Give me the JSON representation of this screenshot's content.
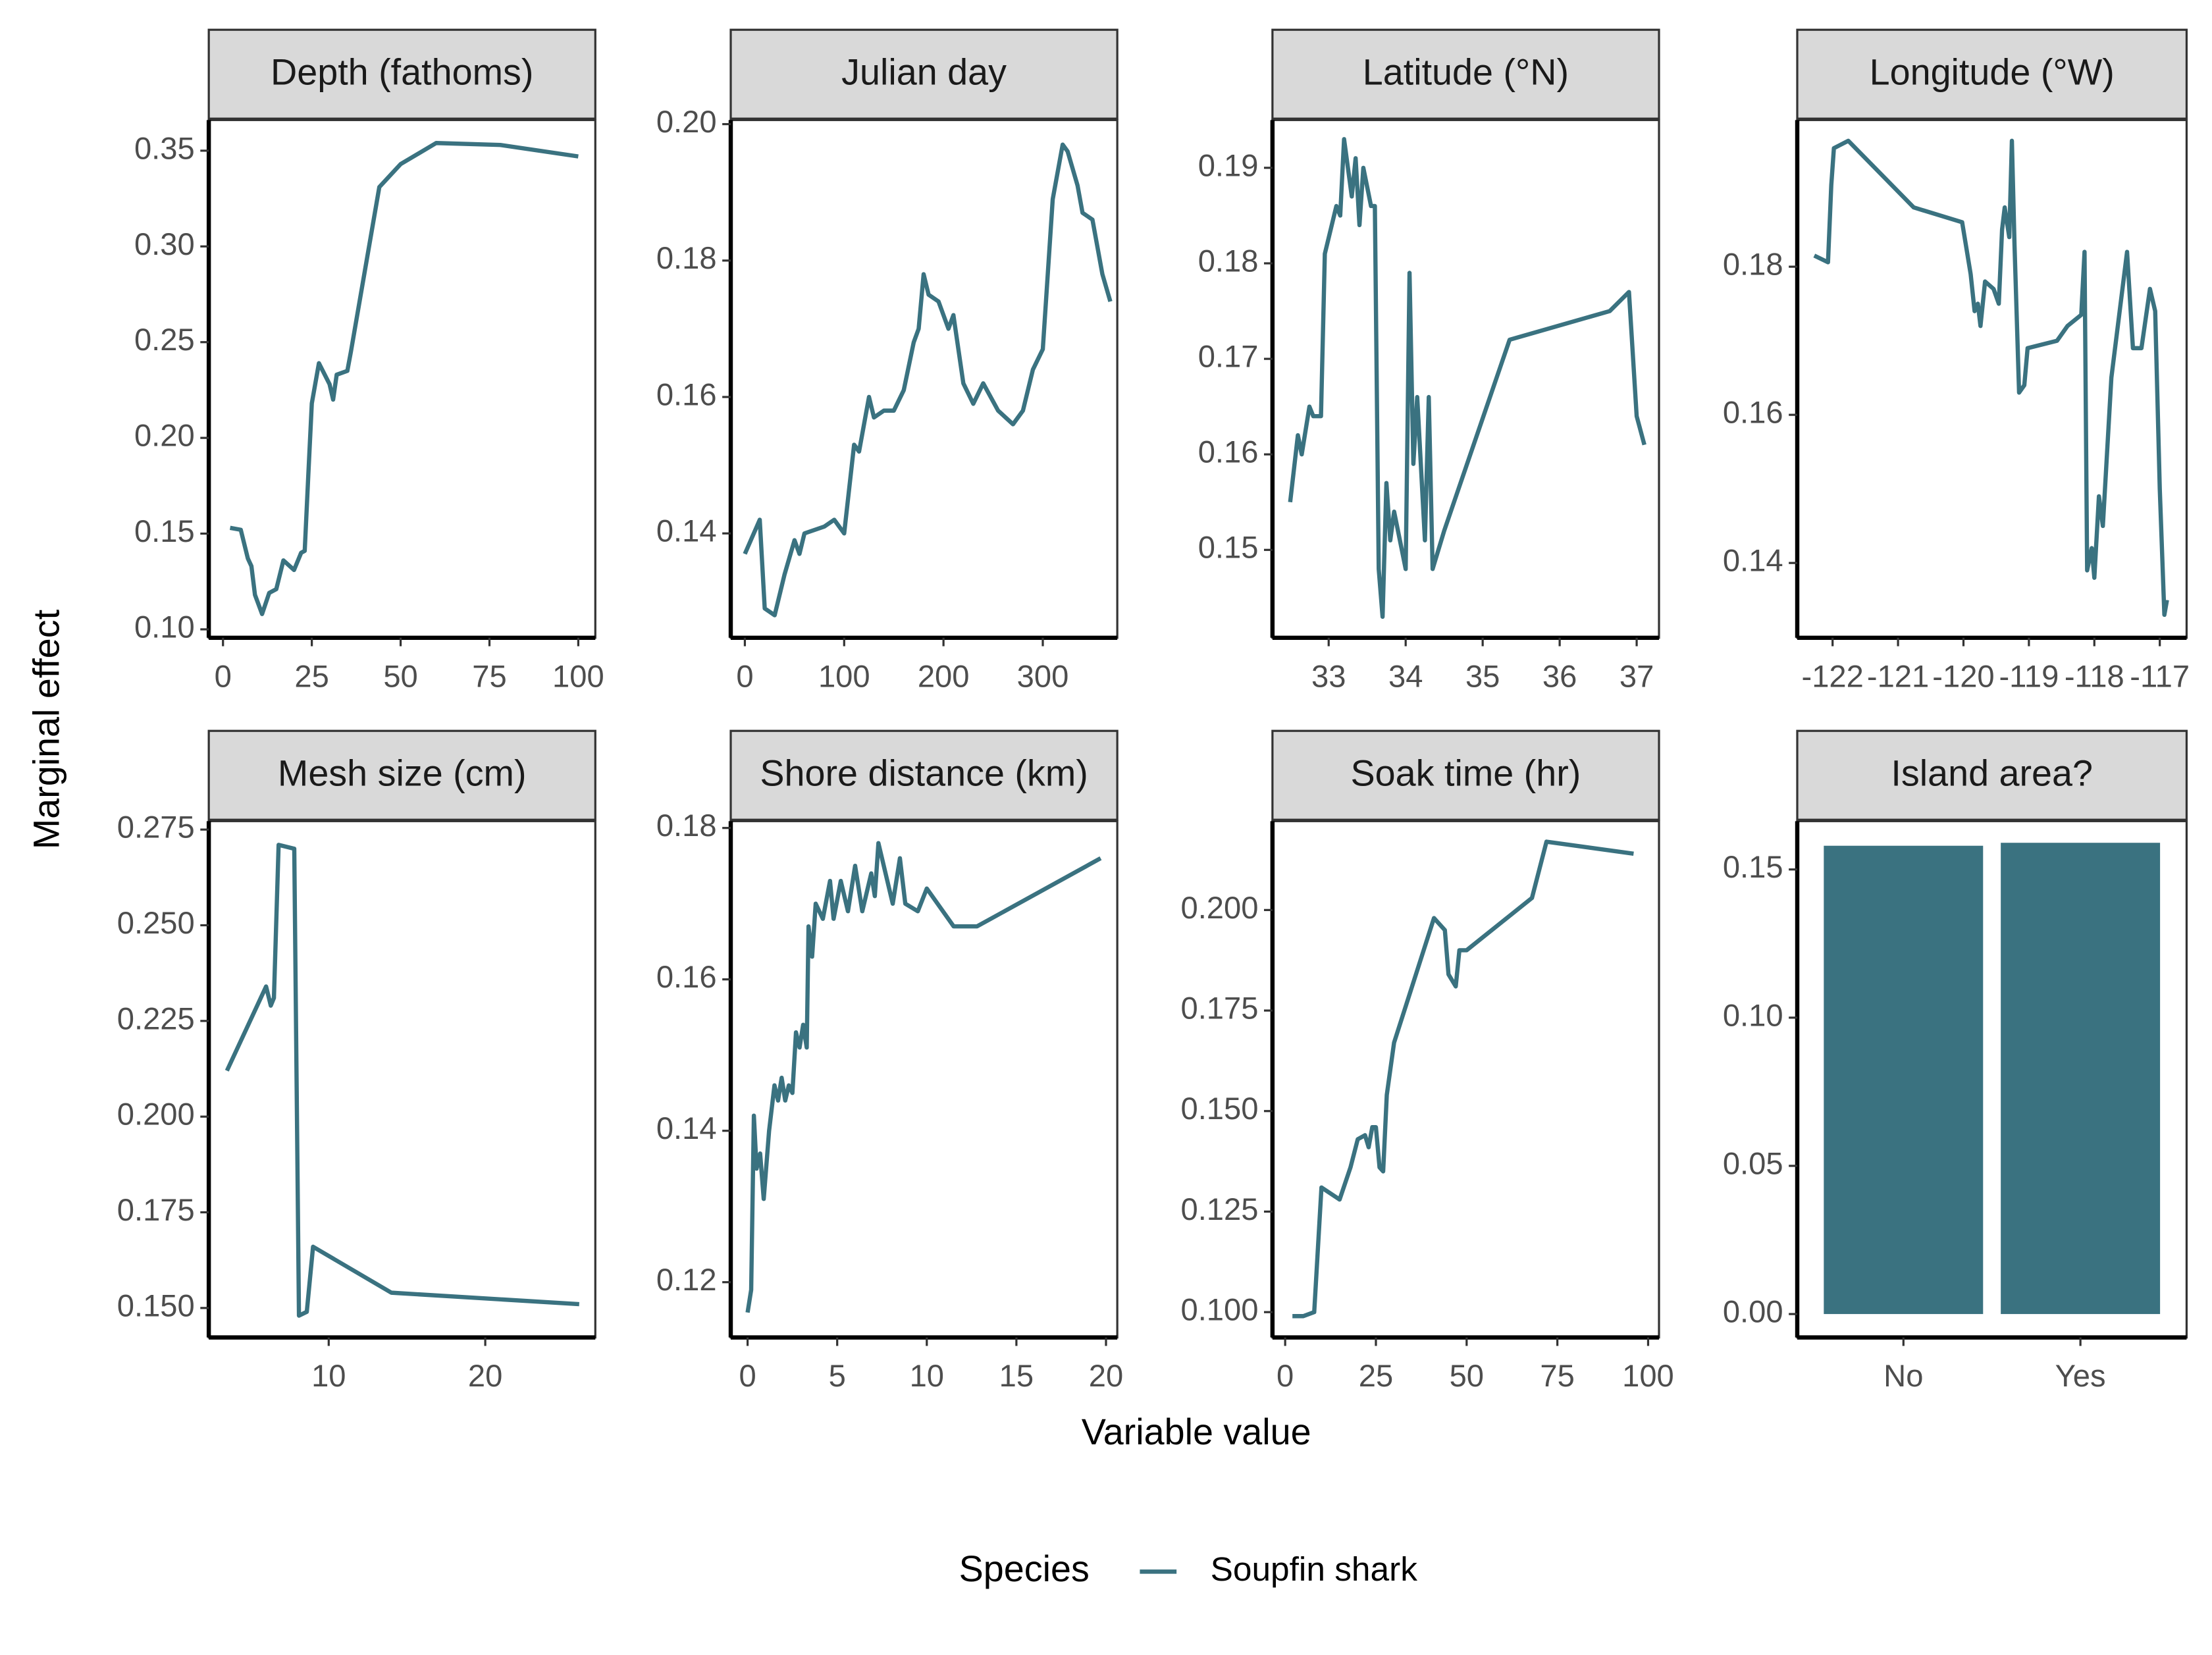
{
  "y_label": "Marginal effect",
  "x_label": "Variable value",
  "legend": {
    "title": "Species",
    "entries": [
      {
        "name": "Soupfin shark",
        "color": "#3a7280"
      }
    ]
  },
  "chart_data": [
    {
      "type": "line",
      "title": "Depth (fathoms)",
      "color": "#3a7280",
      "x": [
        2,
        5,
        7,
        8,
        9,
        10,
        11,
        13,
        15,
        17,
        20,
        22,
        23,
        24,
        25,
        27,
        30,
        31,
        32,
        35,
        36,
        44,
        50,
        60,
        78,
        100
      ],
      "values": [
        0.153,
        0.152,
        0.137,
        0.133,
        0.118,
        0.113,
        0.108,
        0.119,
        0.121,
        0.136,
        0.131,
        0.14,
        0.141,
        0.18,
        0.218,
        0.239,
        0.228,
        0.22,
        0.233,
        0.235,
        0.245,
        0.331,
        0.343,
        0.354,
        0.353,
        0.347
      ],
      "xlim": [
        -4,
        104.8
      ],
      "ylim": [
        0.0956,
        0.366
      ],
      "xticks": [
        0,
        25,
        50,
        75,
        100
      ],
      "yticks": [
        {
          "value": 0.1,
          "label": "0.10"
        },
        0.15,
        {
          "value": 0.2,
          "label": "0.20"
        },
        0.25,
        {
          "value": 0.3,
          "label": "0.30"
        },
        0.35
      ]
    },
    {
      "type": "line",
      "title": "Julian day",
      "color": "#3a7280",
      "x": [
        0,
        15,
        20,
        30,
        40,
        50,
        55,
        60,
        80,
        90,
        100,
        110,
        115,
        125,
        130,
        140,
        150,
        160,
        170,
        175,
        180,
        185,
        195,
        205,
        210,
        220,
        230,
        240,
        255,
        270,
        280,
        290,
        300,
        310,
        320,
        325,
        335,
        340,
        350,
        360,
        368
      ],
      "values": [
        0.137,
        0.142,
        0.129,
        0.128,
        0.134,
        0.139,
        0.137,
        0.14,
        0.141,
        0.142,
        0.14,
        0.153,
        0.152,
        0.16,
        0.157,
        0.158,
        0.158,
        0.161,
        0.168,
        0.17,
        0.178,
        0.175,
        0.174,
        0.17,
        0.172,
        0.162,
        0.159,
        0.162,
        0.158,
        0.156,
        0.158,
        0.164,
        0.167,
        0.189,
        0.197,
        0.196,
        0.191,
        0.187,
        0.186,
        0.178,
        0.174
      ],
      "xlim": [
        -14.2,
        375
      ],
      "ylim": [
        0.1247,
        0.2006
      ],
      "xticks": [
        0,
        100,
        200,
        300
      ],
      "yticks": [
        0.14,
        0.16,
        0.18,
        {
          "value": 0.2,
          "label": "0.20"
        }
      ]
    },
    {
      "type": "line",
      "title": "Latitude (°N)",
      "color": "#3a7280",
      "x": [
        32.5,
        32.6,
        32.65,
        32.75,
        32.8,
        32.9,
        32.95,
        33.1,
        33.15,
        33.2,
        33.3,
        33.35,
        33.4,
        33.45,
        33.55,
        33.6,
        33.65,
        33.7,
        33.75,
        33.8,
        33.85,
        34.0,
        34.05,
        34.1,
        34.15,
        34.25,
        34.3,
        34.35,
        34.5,
        35.35,
        36.65,
        36.9,
        37.0,
        37.1
      ],
      "values": [
        0.155,
        0.162,
        0.16,
        0.165,
        0.164,
        0.164,
        0.181,
        0.186,
        0.185,
        0.193,
        0.187,
        0.191,
        0.184,
        0.19,
        0.186,
        0.186,
        0.148,
        0.143,
        0.157,
        0.151,
        0.154,
        0.148,
        0.179,
        0.159,
        0.166,
        0.151,
        0.166,
        0.148,
        0.152,
        0.172,
        0.175,
        0.177,
        0.164,
        0.161
      ],
      "xlim": [
        32.27,
        37.29
      ],
      "ylim": [
        0.1408,
        0.195
      ],
      "xticks": [
        33,
        34,
        35,
        36,
        37
      ],
      "yticks": [
        0.15,
        0.16,
        0.17,
        0.18,
        0.19
      ]
    },
    {
      "type": "line",
      "title": "Longitude (°W)",
      "color": "#3a7280",
      "x": [
        -122.28,
        -122.07,
        -122.02,
        -121.98,
        -121.76,
        -120.76,
        -120.02,
        -119.89,
        -119.83,
        -119.78,
        -119.74,
        -119.67,
        -119.54,
        -119.46,
        -119.41,
        -119.37,
        -119.3,
        -119.26,
        -119.22,
        -119.15,
        -119.07,
        -119.02,
        -118.57,
        -118.41,
        -118.2,
        -118.15,
        -118.11,
        -118.04,
        -118.0,
        -117.93,
        -117.87,
        -117.74,
        -117.5,
        -117.41,
        -117.28,
        -117.15,
        -117.07,
        -117.0,
        -116.93,
        -116.89
      ],
      "values": [
        0.1815,
        0.1806,
        0.191,
        0.196,
        0.197,
        0.188,
        0.186,
        0.179,
        0.174,
        0.175,
        0.172,
        0.178,
        0.177,
        0.175,
        0.185,
        0.188,
        0.184,
        0.197,
        0.183,
        0.163,
        0.164,
        0.169,
        0.17,
        0.172,
        0.1735,
        0.182,
        0.139,
        0.142,
        0.138,
        0.149,
        0.145,
        0.165,
        0.182,
        0.169,
        0.169,
        0.177,
        0.174,
        0.15,
        0.133,
        0.135
      ],
      "xlim": [
        -122.54,
        -116.59
      ],
      "ylim": [
        0.1299,
        0.1998
      ],
      "xticks": [
        -122,
        -121,
        -120,
        -119,
        -118,
        -117
      ],
      "yticks": [
        0.14,
        0.16,
        0.18
      ]
    },
    {
      "type": "line",
      "title": "Mesh size (cm)",
      "color": "#3a7280",
      "x": [
        3.5,
        6,
        6.3,
        6.5,
        6.8,
        7.8,
        8.1,
        8.6,
        9,
        14,
        26
      ],
      "values": [
        0.212,
        0.234,
        0.229,
        0.231,
        0.271,
        0.27,
        0.148,
        0.149,
        0.166,
        0.154,
        0.151
      ],
      "xlim": [
        2.34,
        27.03
      ],
      "ylim": [
        0.1423,
        0.2772
      ],
      "xticks": [
        10,
        20
      ],
      "yticks": [
        {
          "value": 0.15,
          "label": "0.150"
        },
        0.175,
        {
          "value": 0.2,
          "label": "0.200"
        },
        0.225,
        {
          "value": 0.25,
          "label": "0.250"
        },
        0.275
      ]
    },
    {
      "type": "line",
      "title": "Shore distance (km)",
      "color": "#3a7280",
      "x": [
        0,
        0.2,
        0.35,
        0.5,
        0.7,
        0.9,
        1.2,
        1.5,
        1.7,
        1.9,
        2.1,
        2.3,
        2.5,
        2.7,
        2.9,
        3.1,
        3.3,
        3.4,
        3.6,
        3.8,
        4.2,
        4.6,
        4.8,
        5.2,
        5.6,
        6.0,
        6.4,
        6.9,
        7.1,
        7.3,
        7.7,
        8.1,
        8.5,
        8.8,
        9.5,
        10,
        11.5,
        12.8,
        19.7
      ],
      "values": [
        0.116,
        0.119,
        0.142,
        0.135,
        0.137,
        0.131,
        0.14,
        0.146,
        0.144,
        0.147,
        0.144,
        0.146,
        0.145,
        0.153,
        0.151,
        0.154,
        0.151,
        0.167,
        0.163,
        0.17,
        0.168,
        0.173,
        0.168,
        0.173,
        0.169,
        0.175,
        0.169,
        0.174,
        0.171,
        0.178,
        0.174,
        0.17,
        0.176,
        0.17,
        0.169,
        0.172,
        0.167,
        0.167,
        0.176
      ],
      "xlim": [
        -0.94,
        20.63
      ],
      "ylim": [
        0.1127,
        0.1809
      ],
      "xticks": [
        0,
        5,
        10,
        15,
        20
      ],
      "yticks": [
        0.12,
        0.14,
        0.16,
        0.18
      ]
    },
    {
      "type": "line",
      "title": "Soak time (hr)",
      "color": "#3a7280",
      "x": [
        2,
        5,
        8,
        10,
        15,
        18,
        20,
        22,
        23,
        24,
        25,
        26,
        27,
        28,
        30,
        41,
        44,
        45,
        47,
        48,
        50,
        68,
        72,
        96
      ],
      "values": [
        0.099,
        0.099,
        0.1,
        0.131,
        0.128,
        0.136,
        0.143,
        0.144,
        0.141,
        0.146,
        0.146,
        0.136,
        0.135,
        0.154,
        0.167,
        0.198,
        0.195,
        0.184,
        0.181,
        0.19,
        0.19,
        0.203,
        0.217,
        0.214
      ],
      "xlim": [
        -3.5,
        103
      ],
      "ylim": [
        0.0937,
        0.2221
      ],
      "xticks": [
        0,
        25,
        50,
        75,
        100
      ],
      "yticks": [
        {
          "value": 0.1,
          "label": "0.100"
        },
        0.125,
        {
          "value": 0.15,
          "label": "0.150"
        },
        0.175,
        {
          "value": 0.2,
          "label": "0.200"
        }
      ]
    },
    {
      "type": "bar",
      "title": "Island area?",
      "color": "#3a7280",
      "categories": [
        "No",
        "Yes"
      ],
      "values": [
        0.158,
        0.159
      ],
      "ylim": [
        -0.0079,
        0.1663
      ],
      "yticks": [
        {
          "value": 0,
          "label": "0.00"
        },
        0.05,
        {
          "value": 0.1,
          "label": "0.10"
        },
        {
          "value": 0.15,
          "label": "0.15"
        }
      ]
    }
  ]
}
